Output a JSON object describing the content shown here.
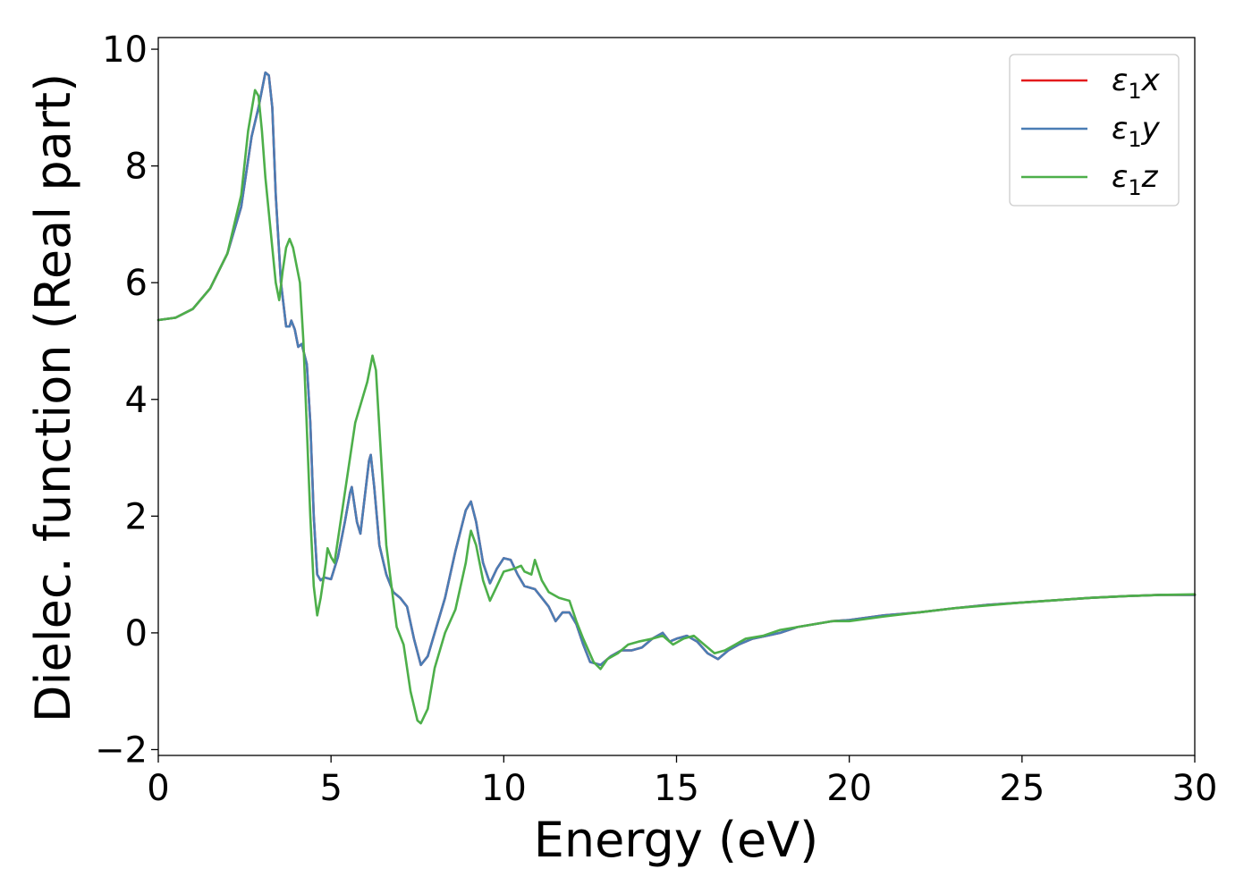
{
  "chart_data": {
    "type": "line",
    "title": "",
    "xlabel": "Energy (eV)",
    "ylabel": "Dielec. function (Real part)",
    "xlim": [
      0,
      30
    ],
    "ylim": [
      -2.1,
      10.2
    ],
    "xticks": [
      0,
      5,
      10,
      15,
      20,
      25,
      30
    ],
    "xtick_labels": [
      "0",
      "5",
      "10",
      "15",
      "20",
      "25",
      "30"
    ],
    "yticks": [
      -2,
      0,
      2,
      4,
      6,
      8,
      10
    ],
    "ytick_labels": [
      "−2",
      "0",
      "2",
      "4",
      "6",
      "8",
      "10"
    ],
    "grid": false,
    "legend_position": "top-right",
    "series": [
      {
        "name": "ε1x",
        "legend_base": "ε",
        "legend_sub": "1",
        "legend_var": "x",
        "color": "#e41a1c",
        "points": [
          [
            0,
            5.36
          ],
          [
            0.5,
            5.4
          ],
          [
            1.0,
            5.55
          ],
          [
            1.5,
            5.9
          ],
          [
            2.0,
            6.5
          ],
          [
            2.4,
            7.3
          ],
          [
            2.7,
            8.5
          ],
          [
            2.9,
            9.0
          ],
          [
            3.1,
            9.6
          ],
          [
            3.2,
            9.55
          ],
          [
            3.3,
            9.0
          ],
          [
            3.4,
            7.5
          ],
          [
            3.55,
            6.0
          ],
          [
            3.7,
            5.25
          ],
          [
            3.8,
            5.25
          ],
          [
            3.85,
            5.35
          ],
          [
            3.95,
            5.2
          ],
          [
            4.05,
            4.9
          ],
          [
            4.15,
            4.95
          ],
          [
            4.3,
            4.6
          ],
          [
            4.4,
            3.6
          ],
          [
            4.5,
            2.0
          ],
          [
            4.6,
            1.0
          ],
          [
            4.7,
            0.9
          ],
          [
            4.8,
            0.95
          ],
          [
            5.0,
            0.92
          ],
          [
            5.2,
            1.3
          ],
          [
            5.4,
            1.9
          ],
          [
            5.55,
            2.4
          ],
          [
            5.6,
            2.5
          ],
          [
            5.75,
            1.9
          ],
          [
            5.85,
            1.7
          ],
          [
            5.95,
            2.2
          ],
          [
            6.1,
            2.95
          ],
          [
            6.15,
            3.05
          ],
          [
            6.25,
            2.5
          ],
          [
            6.4,
            1.5
          ],
          [
            6.6,
            1.0
          ],
          [
            6.8,
            0.7
          ],
          [
            7.0,
            0.6
          ],
          [
            7.2,
            0.45
          ],
          [
            7.4,
            -0.1
          ],
          [
            7.6,
            -0.55
          ],
          [
            7.8,
            -0.4
          ],
          [
            8.0,
            0.0
          ],
          [
            8.3,
            0.6
          ],
          [
            8.6,
            1.4
          ],
          [
            8.9,
            2.1
          ],
          [
            9.05,
            2.25
          ],
          [
            9.2,
            1.9
          ],
          [
            9.4,
            1.2
          ],
          [
            9.6,
            0.85
          ],
          [
            9.8,
            1.1
          ],
          [
            10.0,
            1.28
          ],
          [
            10.2,
            1.25
          ],
          [
            10.4,
            1.0
          ],
          [
            10.6,
            0.8
          ],
          [
            10.9,
            0.75
          ],
          [
            11.1,
            0.6
          ],
          [
            11.3,
            0.45
          ],
          [
            11.5,
            0.2
          ],
          [
            11.7,
            0.35
          ],
          [
            11.9,
            0.35
          ],
          [
            12.1,
            0.15
          ],
          [
            12.3,
            -0.2
          ],
          [
            12.5,
            -0.5
          ],
          [
            12.8,
            -0.55
          ],
          [
            13.1,
            -0.4
          ],
          [
            13.4,
            -0.3
          ],
          [
            13.7,
            -0.3
          ],
          [
            14.0,
            -0.25
          ],
          [
            14.3,
            -0.1
          ],
          [
            14.6,
            0.0
          ],
          [
            14.8,
            -0.15
          ],
          [
            15.0,
            -0.1
          ],
          [
            15.3,
            -0.05
          ],
          [
            15.6,
            -0.15
          ],
          [
            15.9,
            -0.35
          ],
          [
            16.2,
            -0.45
          ],
          [
            16.5,
            -0.3
          ],
          [
            16.8,
            -0.2
          ],
          [
            17.2,
            -0.1
          ],
          [
            17.6,
            -0.05
          ],
          [
            18.0,
            0.0
          ],
          [
            18.5,
            0.1
          ],
          [
            19.0,
            0.15
          ],
          [
            19.5,
            0.2
          ],
          [
            20.0,
            0.22
          ],
          [
            21.0,
            0.3
          ],
          [
            22.0,
            0.35
          ],
          [
            23.0,
            0.42
          ],
          [
            24.0,
            0.48
          ],
          [
            25.0,
            0.52
          ],
          [
            26.0,
            0.56
          ],
          [
            27.0,
            0.6
          ],
          [
            28.0,
            0.63
          ],
          [
            29.0,
            0.65
          ],
          [
            30.0,
            0.65
          ]
        ]
      },
      {
        "name": "ε1y",
        "legend_base": "ε",
        "legend_sub": "1",
        "legend_var": "y",
        "color": "#4a7db5",
        "points": [
          [
            0,
            5.36
          ],
          [
            0.5,
            5.4
          ],
          [
            1.0,
            5.55
          ],
          [
            1.5,
            5.9
          ],
          [
            2.0,
            6.5
          ],
          [
            2.4,
            7.3
          ],
          [
            2.7,
            8.5
          ],
          [
            2.9,
            9.0
          ],
          [
            3.1,
            9.6
          ],
          [
            3.2,
            9.55
          ],
          [
            3.3,
            9.0
          ],
          [
            3.4,
            7.5
          ],
          [
            3.55,
            6.0
          ],
          [
            3.7,
            5.25
          ],
          [
            3.8,
            5.25
          ],
          [
            3.85,
            5.35
          ],
          [
            3.95,
            5.2
          ],
          [
            4.05,
            4.9
          ],
          [
            4.15,
            4.95
          ],
          [
            4.3,
            4.6
          ],
          [
            4.4,
            3.6
          ],
          [
            4.5,
            2.0
          ],
          [
            4.6,
            1.0
          ],
          [
            4.7,
            0.9
          ],
          [
            4.8,
            0.95
          ],
          [
            5.0,
            0.92
          ],
          [
            5.2,
            1.3
          ],
          [
            5.4,
            1.9
          ],
          [
            5.55,
            2.4
          ],
          [
            5.6,
            2.5
          ],
          [
            5.75,
            1.9
          ],
          [
            5.85,
            1.7
          ],
          [
            5.95,
            2.2
          ],
          [
            6.1,
            2.95
          ],
          [
            6.15,
            3.05
          ],
          [
            6.25,
            2.5
          ],
          [
            6.4,
            1.5
          ],
          [
            6.6,
            1.0
          ],
          [
            6.8,
            0.7
          ],
          [
            7.0,
            0.6
          ],
          [
            7.2,
            0.45
          ],
          [
            7.4,
            -0.1
          ],
          [
            7.6,
            -0.55
          ],
          [
            7.8,
            -0.4
          ],
          [
            8.0,
            0.0
          ],
          [
            8.3,
            0.6
          ],
          [
            8.6,
            1.4
          ],
          [
            8.9,
            2.1
          ],
          [
            9.05,
            2.25
          ],
          [
            9.2,
            1.9
          ],
          [
            9.4,
            1.2
          ],
          [
            9.6,
            0.85
          ],
          [
            9.8,
            1.1
          ],
          [
            10.0,
            1.28
          ],
          [
            10.2,
            1.25
          ],
          [
            10.4,
            1.0
          ],
          [
            10.6,
            0.8
          ],
          [
            10.9,
            0.75
          ],
          [
            11.1,
            0.6
          ],
          [
            11.3,
            0.45
          ],
          [
            11.5,
            0.2
          ],
          [
            11.7,
            0.35
          ],
          [
            11.9,
            0.35
          ],
          [
            12.1,
            0.15
          ],
          [
            12.3,
            -0.2
          ],
          [
            12.5,
            -0.5
          ],
          [
            12.8,
            -0.55
          ],
          [
            13.1,
            -0.4
          ],
          [
            13.4,
            -0.3
          ],
          [
            13.7,
            -0.3
          ],
          [
            14.0,
            -0.25
          ],
          [
            14.3,
            -0.1
          ],
          [
            14.6,
            0.0
          ],
          [
            14.8,
            -0.15
          ],
          [
            15.0,
            -0.1
          ],
          [
            15.3,
            -0.05
          ],
          [
            15.6,
            -0.15
          ],
          [
            15.9,
            -0.35
          ],
          [
            16.2,
            -0.45
          ],
          [
            16.5,
            -0.3
          ],
          [
            16.8,
            -0.2
          ],
          [
            17.2,
            -0.1
          ],
          [
            17.6,
            -0.05
          ],
          [
            18.0,
            0.0
          ],
          [
            18.5,
            0.1
          ],
          [
            19.0,
            0.15
          ],
          [
            19.5,
            0.2
          ],
          [
            20.0,
            0.22
          ],
          [
            21.0,
            0.3
          ],
          [
            22.0,
            0.35
          ],
          [
            23.0,
            0.42
          ],
          [
            24.0,
            0.48
          ],
          [
            25.0,
            0.52
          ],
          [
            26.0,
            0.56
          ],
          [
            27.0,
            0.6
          ],
          [
            28.0,
            0.63
          ],
          [
            29.0,
            0.65
          ],
          [
            30.0,
            0.65
          ]
        ]
      },
      {
        "name": "ε1z",
        "legend_base": "ε",
        "legend_sub": "1",
        "legend_var": "z",
        "color": "#4daf4a",
        "points": [
          [
            0,
            5.36
          ],
          [
            0.5,
            5.4
          ],
          [
            1.0,
            5.55
          ],
          [
            1.5,
            5.9
          ],
          [
            2.0,
            6.5
          ],
          [
            2.4,
            7.5
          ],
          [
            2.6,
            8.6
          ],
          [
            2.8,
            9.3
          ],
          [
            2.9,
            9.2
          ],
          [
            3.0,
            8.6
          ],
          [
            3.1,
            7.8
          ],
          [
            3.2,
            7.2
          ],
          [
            3.3,
            6.6
          ],
          [
            3.4,
            6.0
          ],
          [
            3.5,
            5.7
          ],
          [
            3.6,
            6.2
          ],
          [
            3.7,
            6.6
          ],
          [
            3.8,
            6.75
          ],
          [
            3.9,
            6.6
          ],
          [
            4.0,
            6.3
          ],
          [
            4.1,
            6.0
          ],
          [
            4.2,
            5.0
          ],
          [
            4.3,
            3.5
          ],
          [
            4.4,
            2.0
          ],
          [
            4.5,
            0.8
          ],
          [
            4.6,
            0.3
          ],
          [
            4.7,
            0.6
          ],
          [
            4.85,
            1.2
          ],
          [
            4.9,
            1.45
          ],
          [
            5.0,
            1.3
          ],
          [
            5.1,
            1.2
          ],
          [
            5.3,
            2.0
          ],
          [
            5.5,
            2.8
          ],
          [
            5.7,
            3.6
          ],
          [
            5.9,
            4.0
          ],
          [
            6.05,
            4.3
          ],
          [
            6.15,
            4.6
          ],
          [
            6.2,
            4.75
          ],
          [
            6.3,
            4.5
          ],
          [
            6.4,
            3.5
          ],
          [
            6.5,
            2.5
          ],
          [
            6.6,
            1.5
          ],
          [
            6.75,
            0.8
          ],
          [
            6.9,
            0.1
          ],
          [
            7.0,
            -0.05
          ],
          [
            7.1,
            -0.2
          ],
          [
            7.3,
            -1.0
          ],
          [
            7.5,
            -1.5
          ],
          [
            7.6,
            -1.55
          ],
          [
            7.8,
            -1.3
          ],
          [
            8.0,
            -0.6
          ],
          [
            8.3,
            0.0
          ],
          [
            8.6,
            0.4
          ],
          [
            8.9,
            1.2
          ],
          [
            9.0,
            1.6
          ],
          [
            9.05,
            1.75
          ],
          [
            9.2,
            1.5
          ],
          [
            9.4,
            0.9
          ],
          [
            9.6,
            0.55
          ],
          [
            9.8,
            0.8
          ],
          [
            10.0,
            1.05
          ],
          [
            10.3,
            1.1
          ],
          [
            10.5,
            1.15
          ],
          [
            10.6,
            1.05
          ],
          [
            10.8,
            1.0
          ],
          [
            10.9,
            1.25
          ],
          [
            11.1,
            0.9
          ],
          [
            11.3,
            0.7
          ],
          [
            11.6,
            0.6
          ],
          [
            11.9,
            0.55
          ],
          [
            12.1,
            0.2
          ],
          [
            12.3,
            -0.1
          ],
          [
            12.6,
            -0.5
          ],
          [
            12.8,
            -0.62
          ],
          [
            13.0,
            -0.45
          ],
          [
            13.3,
            -0.35
          ],
          [
            13.6,
            -0.2
          ],
          [
            13.9,
            -0.15
          ],
          [
            14.3,
            -0.1
          ],
          [
            14.6,
            -0.05
          ],
          [
            14.9,
            -0.2
          ],
          [
            15.2,
            -0.1
          ],
          [
            15.5,
            -0.05
          ],
          [
            15.8,
            -0.2
          ],
          [
            16.1,
            -0.35
          ],
          [
            16.4,
            -0.3
          ],
          [
            16.7,
            -0.2
          ],
          [
            17.0,
            -0.1
          ],
          [
            17.5,
            -0.05
          ],
          [
            18.0,
            0.05
          ],
          [
            18.5,
            0.1
          ],
          [
            19.0,
            0.15
          ],
          [
            19.5,
            0.2
          ],
          [
            20.0,
            0.2
          ],
          [
            21.0,
            0.28
          ],
          [
            22.0,
            0.35
          ],
          [
            23.0,
            0.42
          ],
          [
            24.0,
            0.47
          ],
          [
            25.0,
            0.52
          ],
          [
            26.0,
            0.56
          ],
          [
            27.0,
            0.6
          ],
          [
            28.0,
            0.63
          ],
          [
            29.0,
            0.65
          ],
          [
            30.0,
            0.66
          ]
        ]
      }
    ]
  }
}
